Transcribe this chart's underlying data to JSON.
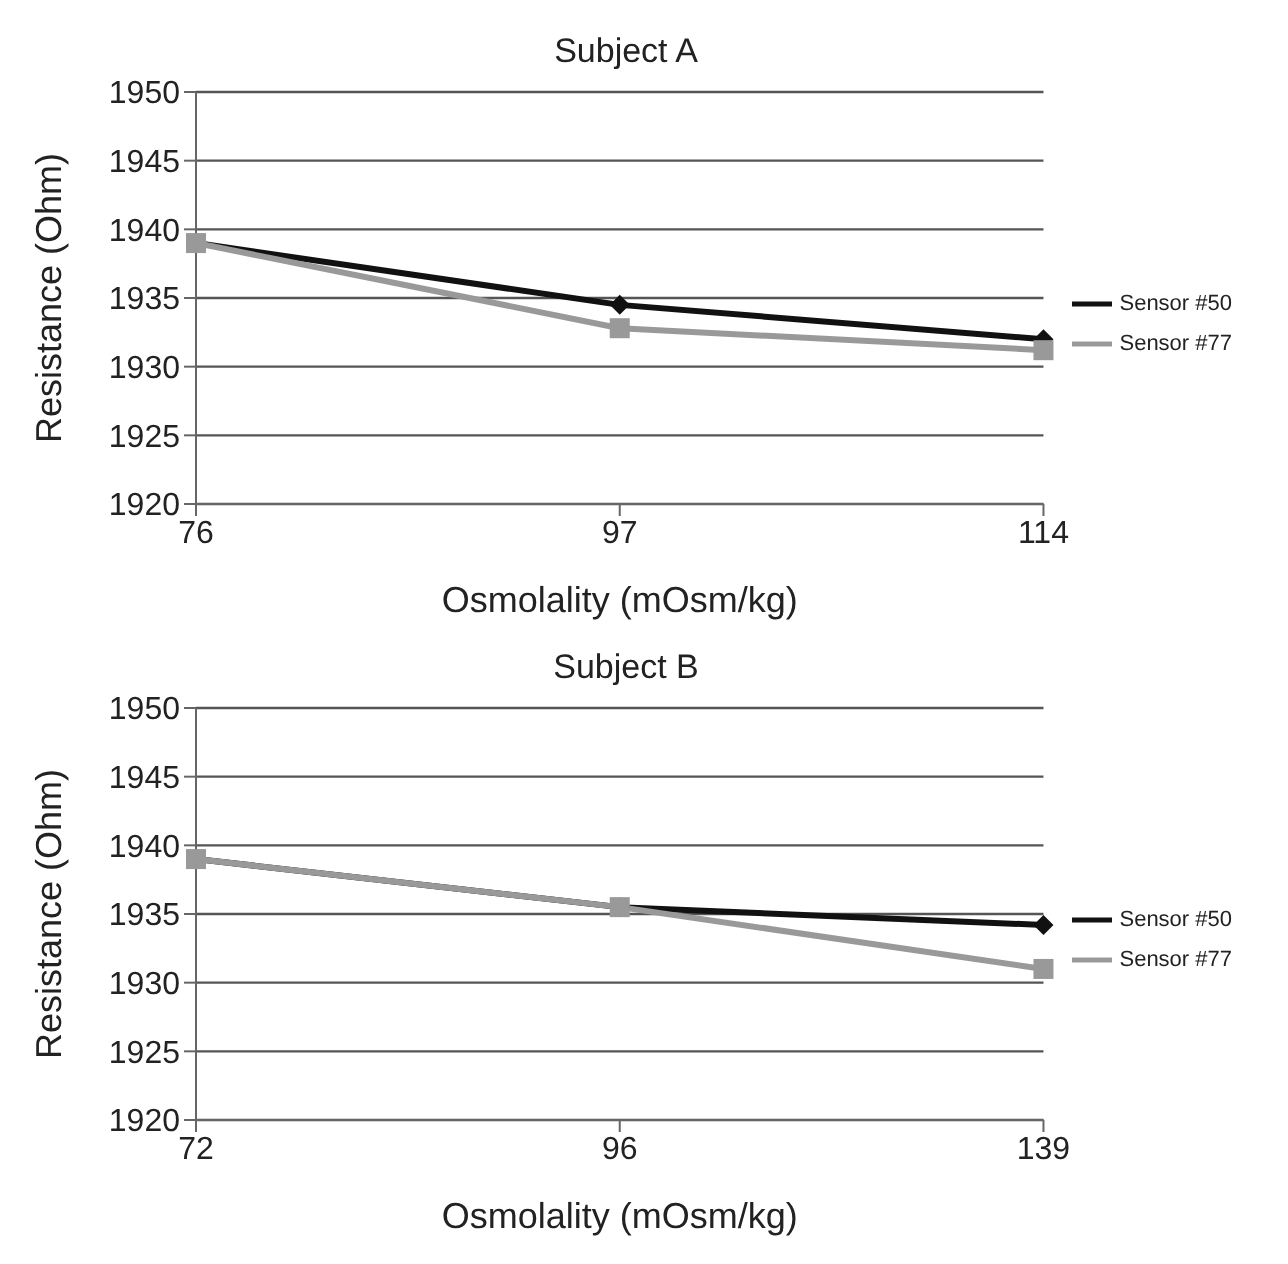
{
  "chart_data": [
    {
      "type": "line",
      "title": "Subject A",
      "xlabel": "Osmolality (mOsm/kg)",
      "ylabel": "Resistance (Ohm)",
      "categories": [
        "76",
        "97",
        "114"
      ],
      "series": [
        {
          "name": "Sensor #50",
          "color": "#111111",
          "marker": "diamond",
          "values": [
            1939,
            1934.5,
            1932
          ]
        },
        {
          "name": "Sensor #77",
          "color": "#999999",
          "marker": "square",
          "values": [
            1939,
            1932.8,
            1931.2
          ]
        }
      ],
      "ylim": [
        1920,
        1950
      ],
      "yticks": [
        1920,
        1925,
        1930,
        1935,
        1940,
        1945,
        1950
      ],
      "grid": "y",
      "legend": "right"
    },
    {
      "type": "line",
      "title": "Subject B",
      "xlabel": "Osmolality (mOsm/kg)",
      "ylabel": "Resistance (Ohm)",
      "categories": [
        "72",
        "96",
        "139"
      ],
      "series": [
        {
          "name": "Sensor #50",
          "color": "#111111",
          "marker": "diamond",
          "values": [
            1939,
            1935.5,
            1934.2
          ]
        },
        {
          "name": "Sensor #77",
          "color": "#999999",
          "marker": "square",
          "values": [
            1939,
            1935.5,
            1931
          ]
        }
      ],
      "ylim": [
        1920,
        1950
      ],
      "yticks": [
        1920,
        1925,
        1930,
        1935,
        1940,
        1945,
        1950
      ],
      "grid": "y",
      "legend": "right"
    }
  ]
}
